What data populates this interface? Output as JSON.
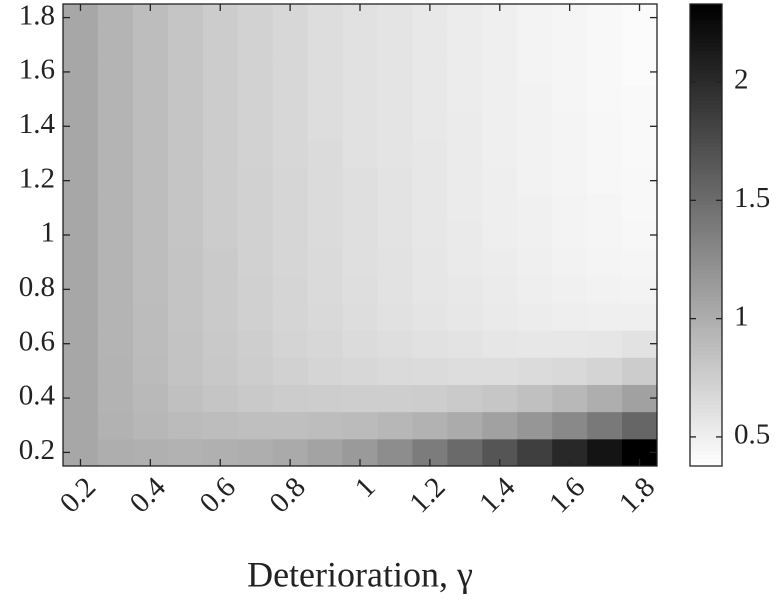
{
  "chart_data": {
    "type": "heatmap",
    "xlabel": "Deterioration, γ",
    "x": [
      0.2,
      0.3,
      0.4,
      0.5,
      0.6,
      0.7,
      0.8,
      0.9,
      1.0,
      1.1,
      1.2,
      1.3,
      1.4,
      1.5,
      1.6,
      1.7,
      1.8
    ],
    "y": [
      0.2,
      0.3,
      0.4,
      0.5,
      0.6,
      0.7,
      0.8,
      0.9,
      1.0,
      1.1,
      1.2,
      1.3,
      1.4,
      1.5,
      1.6,
      1.7,
      1.8
    ],
    "values": [
      [
        1.05,
        1.0,
        0.98,
        0.97,
        0.98,
        1.0,
        1.03,
        1.08,
        1.15,
        1.25,
        1.38,
        1.52,
        1.68,
        1.85,
        2.02,
        2.18,
        2.33
      ],
      [
        1.05,
        0.97,
        0.93,
        0.9,
        0.88,
        0.87,
        0.87,
        0.88,
        0.9,
        0.93,
        0.97,
        1.02,
        1.1,
        1.18,
        1.28,
        1.4,
        1.55
      ],
      [
        1.05,
        0.96,
        0.91,
        0.86,
        0.82,
        0.79,
        0.77,
        0.76,
        0.75,
        0.75,
        0.76,
        0.78,
        0.81,
        0.86,
        0.92,
        1.0,
        1.1
      ],
      [
        1.05,
        0.96,
        0.9,
        0.84,
        0.8,
        0.76,
        0.73,
        0.7,
        0.68,
        0.66,
        0.65,
        0.64,
        0.64,
        0.65,
        0.67,
        0.71,
        0.77
      ],
      [
        1.05,
        0.95,
        0.89,
        0.84,
        0.79,
        0.75,
        0.71,
        0.68,
        0.65,
        0.63,
        0.61,
        0.59,
        0.57,
        0.56,
        0.56,
        0.57,
        0.6
      ],
      [
        1.05,
        0.95,
        0.89,
        0.83,
        0.78,
        0.74,
        0.7,
        0.67,
        0.64,
        0.61,
        0.58,
        0.56,
        0.54,
        0.52,
        0.51,
        0.5,
        0.5
      ],
      [
        1.05,
        0.95,
        0.88,
        0.83,
        0.78,
        0.74,
        0.7,
        0.66,
        0.63,
        0.6,
        0.57,
        0.55,
        0.53,
        0.51,
        0.49,
        0.48,
        0.47
      ],
      [
        1.05,
        0.95,
        0.88,
        0.83,
        0.78,
        0.73,
        0.69,
        0.66,
        0.62,
        0.6,
        0.57,
        0.54,
        0.52,
        0.5,
        0.48,
        0.46,
        0.45
      ],
      [
        1.05,
        0.95,
        0.88,
        0.82,
        0.77,
        0.73,
        0.69,
        0.65,
        0.62,
        0.59,
        0.56,
        0.54,
        0.51,
        0.49,
        0.47,
        0.45,
        0.44
      ],
      [
        1.05,
        0.95,
        0.88,
        0.82,
        0.77,
        0.73,
        0.69,
        0.65,
        0.62,
        0.59,
        0.56,
        0.53,
        0.51,
        0.49,
        0.47,
        0.45,
        0.43
      ],
      [
        1.05,
        0.95,
        0.88,
        0.82,
        0.77,
        0.73,
        0.69,
        0.65,
        0.62,
        0.59,
        0.56,
        0.53,
        0.51,
        0.48,
        0.46,
        0.44,
        0.43
      ],
      [
        1.05,
        0.95,
        0.88,
        0.82,
        0.77,
        0.72,
        0.68,
        0.65,
        0.61,
        0.58,
        0.56,
        0.53,
        0.5,
        0.48,
        0.46,
        0.44,
        0.42
      ],
      [
        1.05,
        0.95,
        0.88,
        0.82,
        0.77,
        0.72,
        0.68,
        0.64,
        0.61,
        0.58,
        0.55,
        0.53,
        0.5,
        0.48,
        0.46,
        0.44,
        0.42
      ],
      [
        1.05,
        0.95,
        0.88,
        0.82,
        0.77,
        0.72,
        0.68,
        0.64,
        0.61,
        0.58,
        0.55,
        0.52,
        0.5,
        0.48,
        0.45,
        0.43,
        0.42
      ],
      [
        1.05,
        0.95,
        0.88,
        0.82,
        0.77,
        0.72,
        0.68,
        0.64,
        0.61,
        0.58,
        0.55,
        0.52,
        0.5,
        0.47,
        0.45,
        0.43,
        0.41
      ],
      [
        1.05,
        0.95,
        0.88,
        0.82,
        0.77,
        0.72,
        0.68,
        0.64,
        0.61,
        0.58,
        0.55,
        0.52,
        0.5,
        0.47,
        0.45,
        0.43,
        0.41
      ],
      [
        1.05,
        0.95,
        0.88,
        0.82,
        0.77,
        0.72,
        0.68,
        0.64,
        0.61,
        0.58,
        0.55,
        0.52,
        0.5,
        0.47,
        0.45,
        0.43,
        0.41
      ]
    ],
    "xlim": [
      0.15,
      1.85
    ],
    "ylim": [
      0.15,
      1.85
    ],
    "xticks": [
      0.2,
      0.4,
      0.6,
      0.8,
      1,
      1.2,
      1.4,
      1.6,
      1.8
    ],
    "yticks": [
      0.2,
      0.4,
      0.6,
      0.8,
      1,
      1.2,
      1.4,
      1.6,
      1.8
    ],
    "colormap": "gray-reversed",
    "clim": [
      0.377,
      2.33
    ],
    "cticks": [
      0.5,
      1,
      1.5,
      2
    ]
  }
}
